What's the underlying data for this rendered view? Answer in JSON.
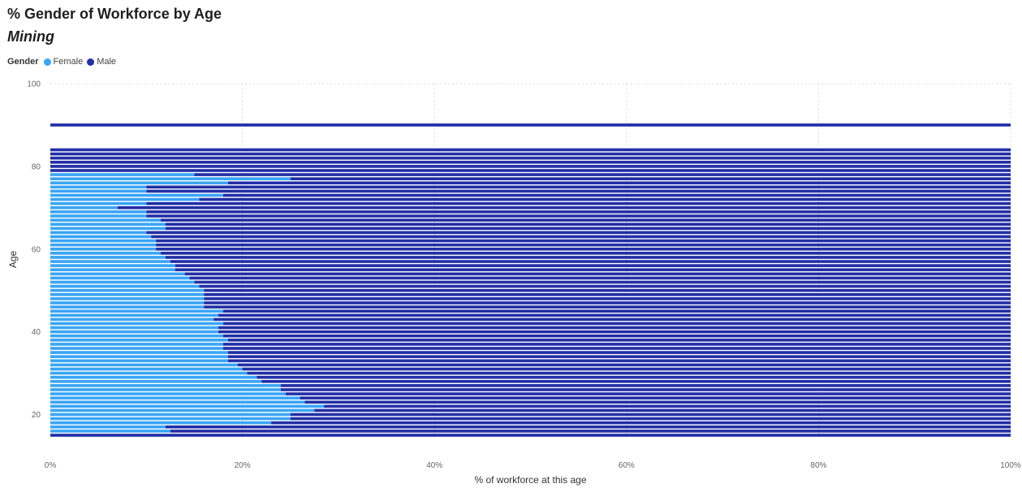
{
  "chart_data": {
    "type": "bar",
    "stacked": "percent",
    "orientation": "horizontal",
    "title": "% Gender of Workforce by Age",
    "subtitle": "Mining",
    "legend_title": "Gender",
    "legend_position": "top-left",
    "xlabel": "% of workforce at this age",
    "ylabel": "Age",
    "xlim": [
      0,
      100
    ],
    "ylim": [
      15,
      100
    ],
    "x_ticks": [
      "0%",
      "20%",
      "40%",
      "60%",
      "80%",
      "100%"
    ],
    "y_ticks": [
      "20",
      "40",
      "60",
      "80",
      "100"
    ],
    "grid": true,
    "colors": {
      "Female": "#3aa5f5",
      "Male": "#222fa6"
    },
    "series": [
      {
        "name": "Female"
      },
      {
        "name": "Male"
      }
    ],
    "ages": [
      15,
      16,
      17,
      18,
      19,
      20,
      21,
      22,
      23,
      24,
      25,
      26,
      27,
      28,
      29,
      30,
      31,
      32,
      33,
      34,
      35,
      36,
      37,
      38,
      39,
      40,
      41,
      42,
      43,
      44,
      45,
      46,
      47,
      48,
      49,
      50,
      51,
      52,
      53,
      54,
      55,
      56,
      57,
      58,
      59,
      60,
      61,
      62,
      63,
      64,
      65,
      66,
      67,
      68,
      69,
      70,
      71,
      72,
      73,
      74,
      75,
      76,
      77,
      78,
      79,
      80,
      81,
      82,
      83,
      84,
      90
    ],
    "female_pct": [
      0,
      12.5,
      12,
      23,
      25,
      25,
      27.5,
      28.5,
      26.5,
      26,
      24.5,
      24,
      24,
      22,
      21.5,
      20.5,
      20,
      19.5,
      18.5,
      18.5,
      18.5,
      18,
      18,
      18.5,
      18,
      17.5,
      17.5,
      18,
      17,
      17.5,
      18,
      16,
      16,
      16,
      16,
      16,
      15.5,
      15,
      14.5,
      14,
      13,
      13,
      12.5,
      12,
      11.5,
      11,
      11,
      11,
      10.5,
      10,
      12,
      12,
      11.5,
      10,
      10,
      7,
      10,
      15.5,
      18,
      10,
      10,
      18.5,
      25,
      15,
      0,
      0,
      0,
      0,
      0,
      0,
      0
    ]
  }
}
